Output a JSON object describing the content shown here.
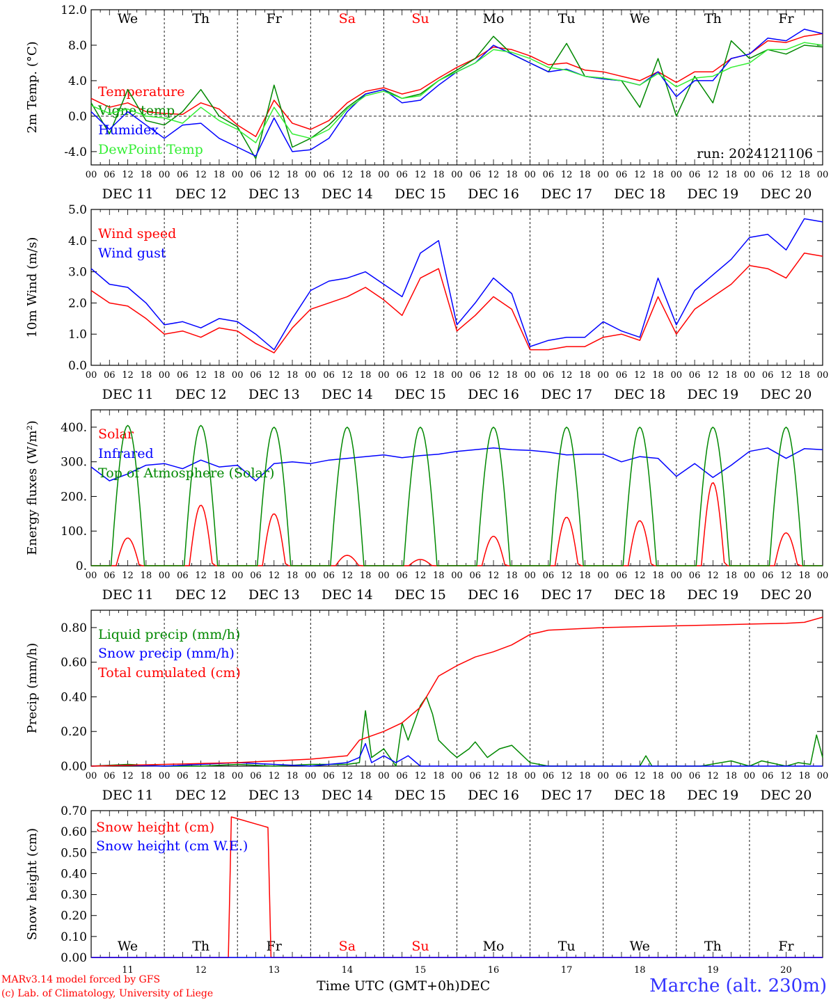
{
  "colors": {
    "red": "#ff0000",
    "blue": "#0000ff",
    "green": "#008800",
    "lightgreen": "#33ee33",
    "black": "#000000"
  },
  "days": {
    "names": [
      "We",
      "Th",
      "Fr",
      "Sa",
      "Su",
      "Mo",
      "Tu",
      "We",
      "Th",
      "Fr"
    ],
    "weekend_color": "#ff0000",
    "weekend_days": [
      "Sa",
      "Su"
    ],
    "date_labels": [
      "DEC 11",
      "DEC 12",
      "DEC 13",
      "DEC 14",
      "DEC 15",
      "DEC 16",
      "DEC 17",
      "DEC 18",
      "DEC 19",
      "DEC 20"
    ],
    "day_numbers": [
      "11",
      "12",
      "13",
      "14",
      "15",
      "16",
      "17",
      "18",
      "19",
      "20"
    ],
    "hour_ticks": [
      "00",
      "06",
      "12",
      "18"
    ],
    "final_tick": "00"
  },
  "footer": {
    "credit_line1": "MARv3.14 model forced by GFS",
    "credit_line2": "(c) Lab. of Climatology, University of Liege",
    "x_axis_label": "Time UTC (GMT+0h)",
    "month_label": "DEC",
    "station": "Marche (alt. 230m)"
  },
  "chart_data": [
    {
      "type": "line",
      "ylabel": "2m Temp. (°C)",
      "ylim": [
        -5.5,
        12
      ],
      "yticks": [
        -4,
        0,
        4,
        8,
        12
      ],
      "ytick_labels": [
        "-4.0",
        "0.0",
        "4.0",
        "8.0",
        "12.0"
      ],
      "zero_line": true,
      "annotation": "run: 2024121106",
      "x_unit": "hours since Dec 11 00 UTC",
      "series": [
        {
          "name": "Temperature",
          "color": "#ff0000",
          "x": [
            0,
            6,
            12,
            18,
            24,
            30,
            36,
            42,
            48,
            54,
            60,
            66,
            72,
            78,
            84,
            90,
            96,
            102,
            108,
            114,
            120,
            126,
            132,
            138,
            144,
            150,
            156,
            162,
            168,
            174,
            180,
            186,
            192,
            198,
            204,
            210,
            216,
            222,
            228,
            234,
            240
          ],
          "y": [
            2.0,
            1.0,
            1.5,
            0.5,
            0.3,
            0.2,
            1.5,
            0.8,
            -1.0,
            -2.3,
            1.8,
            -0.8,
            -1.5,
            -0.5,
            1.5,
            2.8,
            3.2,
            2.5,
            3.0,
            4.3,
            5.5,
            6.5,
            7.8,
            7.5,
            6.8,
            5.8,
            6.0,
            5.2,
            5.0,
            4.5,
            4.0,
            5.0,
            3.8,
            5.0,
            5.0,
            6.5,
            7.0,
            8.5,
            8.3,
            9.0,
            9.3
          ]
        },
        {
          "name": "Vigne temp",
          "color": "#008800",
          "x": [
            0,
            6,
            12,
            18,
            24,
            30,
            36,
            42,
            48,
            54,
            60,
            66,
            72,
            78,
            84,
            90,
            96,
            102,
            108,
            114,
            120,
            126,
            132,
            138,
            144,
            150,
            156,
            162,
            168,
            174,
            180,
            186,
            192,
            198,
            204,
            210,
            216,
            222,
            228,
            234,
            240
          ],
          "y": [
            1.5,
            -2.0,
            3.0,
            -0.5,
            -1.0,
            0.5,
            3.0,
            0.0,
            -1.2,
            -4.8,
            3.5,
            -3.5,
            -2.5,
            -1.0,
            1.0,
            2.5,
            3.0,
            2.0,
            2.5,
            4.0,
            5.2,
            6.5,
            9.0,
            7.0,
            6.0,
            5.0,
            8.2,
            4.5,
            4.2,
            4.0,
            1.0,
            6.5,
            0.0,
            4.5,
            1.5,
            8.5,
            6.5,
            7.5,
            7.0,
            8.0,
            7.8
          ]
        },
        {
          "name": "Humidex",
          "color": "#0000ff",
          "x": [
            0,
            6,
            12,
            18,
            24,
            30,
            36,
            42,
            48,
            54,
            60,
            66,
            72,
            78,
            84,
            90,
            96,
            102,
            108,
            114,
            120,
            126,
            132,
            138,
            144,
            150,
            156,
            162,
            168,
            174,
            180,
            186,
            192,
            198,
            204,
            210,
            216,
            222,
            228,
            234,
            240
          ],
          "y": [
            0.5,
            -1.5,
            0.5,
            -1.0,
            -2.5,
            -1.0,
            -0.8,
            -2.5,
            -3.5,
            -4.5,
            -0.2,
            -4.0,
            -3.8,
            -2.5,
            0.5,
            2.5,
            3.0,
            1.5,
            1.8,
            3.5,
            5.0,
            6.0,
            8.0,
            7.0,
            6.0,
            5.0,
            5.3,
            4.5,
            4.2,
            4.0,
            3.5,
            5.0,
            2.2,
            4.0,
            4.0,
            6.5,
            7.0,
            8.8,
            8.5,
            9.8,
            9.3
          ]
        },
        {
          "name": "DewPoint Temp",
          "color": "#33ee33",
          "x": [
            0,
            6,
            12,
            18,
            24,
            30,
            36,
            42,
            48,
            54,
            60,
            66,
            72,
            78,
            84,
            90,
            96,
            102,
            108,
            114,
            120,
            126,
            132,
            138,
            144,
            150,
            156,
            162,
            168,
            174,
            180,
            186,
            192,
            198,
            204,
            210,
            216,
            222,
            228,
            234,
            240
          ],
          "y": [
            1.2,
            0.3,
            0.8,
            0.0,
            -0.2,
            -0.8,
            1.0,
            -0.5,
            -1.5,
            -3.0,
            1.0,
            -2.0,
            -2.5,
            -1.5,
            0.8,
            2.3,
            2.8,
            2.0,
            2.3,
            4.0,
            5.0,
            6.0,
            7.5,
            7.2,
            6.5,
            5.5,
            5.2,
            4.5,
            4.3,
            4.0,
            3.5,
            4.8,
            3.3,
            4.3,
            4.5,
            5.5,
            6.0,
            7.5,
            7.5,
            8.3,
            8.0
          ]
        }
      ]
    },
    {
      "type": "line",
      "ylabel": "10m Wind (m/s)",
      "ylim": [
        0,
        5
      ],
      "yticks": [
        0,
        1,
        2,
        3,
        4,
        5
      ],
      "ytick_labels": [
        "0.0",
        "1.0",
        "2.0",
        "3.0",
        "4.0",
        "5.0"
      ],
      "x_unit": "hours since Dec 11 00 UTC",
      "series": [
        {
          "name": "Wind speed",
          "color": "#ff0000",
          "x": [
            0,
            6,
            12,
            18,
            24,
            30,
            36,
            42,
            48,
            54,
            60,
            66,
            72,
            78,
            84,
            90,
            96,
            102,
            108,
            114,
            120,
            126,
            132,
            138,
            144,
            150,
            156,
            162,
            168,
            174,
            180,
            186,
            192,
            198,
            204,
            210,
            216,
            222,
            228,
            234,
            240
          ],
          "y": [
            2.4,
            2.0,
            1.9,
            1.5,
            1.0,
            1.1,
            0.9,
            1.2,
            1.1,
            0.7,
            0.4,
            1.2,
            1.8,
            2.0,
            2.2,
            2.5,
            2.1,
            1.6,
            2.8,
            3.1,
            1.1,
            1.6,
            2.2,
            1.8,
            0.5,
            0.5,
            0.6,
            0.6,
            0.9,
            1.0,
            0.8,
            2.2,
            1.0,
            1.8,
            2.2,
            2.6,
            3.2,
            3.1,
            2.8,
            3.6,
            3.5
          ]
        },
        {
          "name": "Wind gust",
          "color": "#0000ff",
          "x": [
            0,
            6,
            12,
            18,
            24,
            30,
            36,
            42,
            48,
            54,
            60,
            66,
            72,
            78,
            84,
            90,
            96,
            102,
            108,
            114,
            120,
            126,
            132,
            138,
            144,
            150,
            156,
            162,
            168,
            174,
            180,
            186,
            192,
            198,
            204,
            210,
            216,
            222,
            228,
            234,
            240
          ],
          "y": [
            3.1,
            2.6,
            2.5,
            2.0,
            1.3,
            1.4,
            1.2,
            1.5,
            1.4,
            1.0,
            0.5,
            1.5,
            2.4,
            2.7,
            2.8,
            3.0,
            2.6,
            2.2,
            3.6,
            4.0,
            1.3,
            2.0,
            2.8,
            2.3,
            0.6,
            0.8,
            0.9,
            0.9,
            1.4,
            1.1,
            0.9,
            2.8,
            1.3,
            2.4,
            2.9,
            3.4,
            4.1,
            4.2,
            3.7,
            4.7,
            4.6
          ]
        }
      ]
    },
    {
      "type": "line",
      "ylabel": "Energy fluxes (W/m²)",
      "ylim": [
        0,
        450
      ],
      "yticks": [
        0,
        100,
        200,
        300,
        400
      ],
      "ytick_labels": [
        "0.",
        "100.",
        "200.",
        "300.",
        "400."
      ],
      "x_unit": "hours since Dec 11 00 UTC",
      "series": [
        {
          "name": "Solar",
          "color": "#ff0000",
          "daily_peak": [
            80,
            175,
            150,
            30,
            18,
            85,
            140,
            130,
            240,
            95
          ]
        },
        {
          "name": "Infrared",
          "color": "#0000ff",
          "x": [
            0,
            6,
            12,
            18,
            24,
            30,
            36,
            42,
            48,
            54,
            60,
            66,
            72,
            78,
            84,
            90,
            96,
            102,
            108,
            114,
            120,
            126,
            132,
            138,
            144,
            150,
            156,
            162,
            168,
            174,
            180,
            186,
            192,
            198,
            204,
            210,
            216,
            222,
            228,
            234,
            240
          ],
          "y": [
            285,
            245,
            265,
            290,
            295,
            280,
            305,
            285,
            290,
            245,
            295,
            300,
            295,
            305,
            310,
            315,
            320,
            312,
            318,
            322,
            330,
            335,
            340,
            335,
            333,
            328,
            320,
            322,
            322,
            300,
            315,
            310,
            258,
            295,
            255,
            290,
            330,
            340,
            310,
            338,
            335
          ]
        },
        {
          "name": "Top of Atmosphere (Solar)",
          "color": "#008800",
          "daily_peak": [
            405,
            405,
            400,
            400,
            400,
            400,
            400,
            400,
            400,
            400
          ]
        }
      ]
    },
    {
      "type": "line",
      "ylabel": "Precip (mm/h)",
      "ylim": [
        0,
        0.9
      ],
      "yticks": [
        0,
        0.2,
        0.4,
        0.6,
        0.8
      ],
      "ytick_labels": [
        "0.00",
        "0.20",
        "0.40",
        "0.60",
        "0.80"
      ],
      "x_unit": "hours since Dec 11 00 UTC",
      "series": [
        {
          "name": "Liquid precip (mm/h)",
          "color": "#008800",
          "x": [
            0,
            12,
            24,
            36,
            48,
            60,
            72,
            84,
            88,
            90,
            92,
            96,
            100,
            102,
            104,
            108,
            110,
            112,
            114,
            118,
            120,
            124,
            126,
            130,
            134,
            138,
            144,
            150,
            168,
            180,
            182,
            184,
            200,
            210,
            216,
            220,
            228,
            232,
            236,
            238,
            240
          ],
          "y": [
            0,
            0.01,
            0,
            0,
            0.01,
            0,
            0.01,
            0.01,
            0.02,
            0.32,
            0.05,
            0.1,
            0.0,
            0.25,
            0.15,
            0.35,
            0.4,
            0.3,
            0.15,
            0.08,
            0.05,
            0.1,
            0.14,
            0.05,
            0.1,
            0.12,
            0.02,
            0.0,
            0.0,
            0.0,
            0.06,
            0.0,
            0.0,
            0.03,
            0.0,
            0.03,
            0.0,
            0.02,
            0.01,
            0.18,
            0.05
          ]
        },
        {
          "name": "Snow precip (mm/h)",
          "color": "#0000ff",
          "x": [
            0,
            12,
            24,
            36,
            48,
            60,
            72,
            84,
            88,
            90,
            92,
            96,
            100,
            104,
            108,
            240
          ],
          "y": [
            0,
            0.005,
            0,
            0.01,
            0.02,
            0.01,
            0,
            0.02,
            0.05,
            0.13,
            0.02,
            0.06,
            0.02,
            0.06,
            0.0,
            0
          ]
        },
        {
          "name": "Total cumulated (cm)",
          "color": "#ff0000",
          "x": [
            0,
            24,
            48,
            60,
            72,
            84,
            88,
            96,
            102,
            108,
            114,
            120,
            126,
            132,
            138,
            144,
            150,
            168,
            180,
            192,
            204,
            216,
            228,
            234,
            240
          ],
          "y": [
            0.0,
            0.01,
            0.02,
            0.03,
            0.04,
            0.06,
            0.15,
            0.2,
            0.25,
            0.34,
            0.52,
            0.58,
            0.63,
            0.66,
            0.7,
            0.76,
            0.785,
            0.8,
            0.805,
            0.81,
            0.815,
            0.82,
            0.825,
            0.83,
            0.86
          ]
        }
      ]
    },
    {
      "type": "line",
      "ylabel": "Snow height (cm)",
      "ylim": [
        0,
        0.7
      ],
      "yticks": [
        0,
        0.1,
        0.2,
        0.3,
        0.4,
        0.5,
        0.6,
        0.7
      ],
      "ytick_labels": [
        "0.00",
        "0.10",
        "0.20",
        "0.30",
        "0.40",
        "0.50",
        "0.60",
        "0.70"
      ],
      "x_unit": "hours since Dec 11 00 UTC",
      "series": [
        {
          "name": "Snow height (cm)",
          "color": "#ff0000",
          "x": [
            0,
            45,
            46,
            58,
            59,
            240
          ],
          "y": [
            0,
            0,
            0.67,
            0.62,
            0,
            0
          ]
        },
        {
          "name": "Snow height (cm W.E.)",
          "color": "#0000ff",
          "x": [
            0,
            240
          ],
          "y": [
            0,
            0
          ]
        }
      ]
    }
  ]
}
